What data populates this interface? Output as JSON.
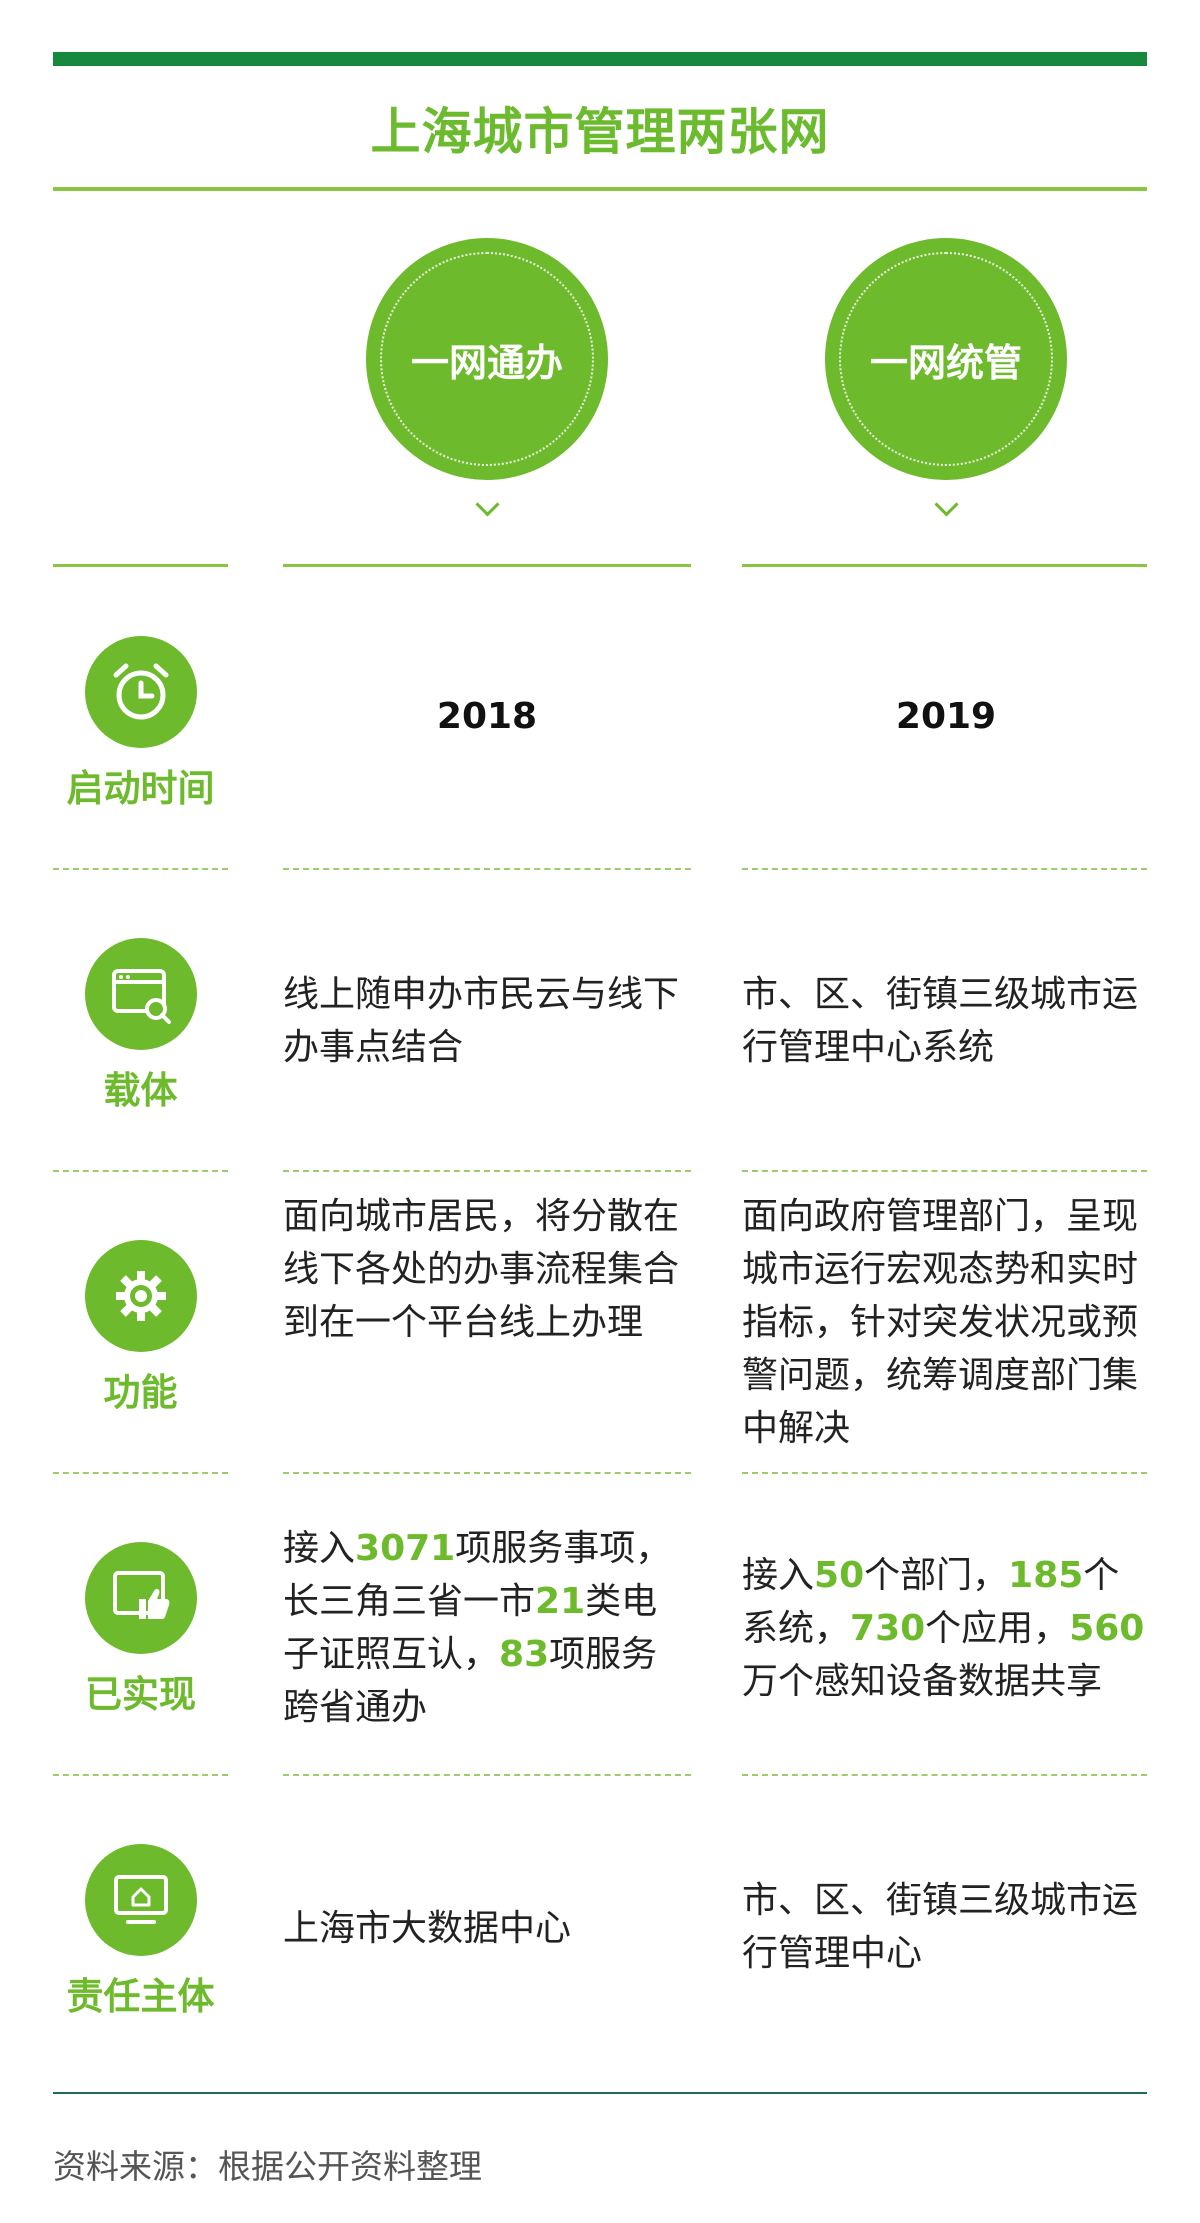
{
  "title": "上海城市管理两张网",
  "columns": [
    {
      "name": "一网通办",
      "year": "2018"
    },
    {
      "name": "一网统管",
      "year": "2019"
    }
  ],
  "rows": [
    {
      "label": "启动时间",
      "icon": "alarm-clock-icon"
    },
    {
      "label": "载体",
      "icon": "browser-window-icon",
      "col1": "线上随申办市民云与线下办事点结合",
      "col2": "市、区、街镇三级城市运行管理中心系统"
    },
    {
      "label": "功能",
      "icon": "gear-icon",
      "col1": "面向城市居民，将分散在线下各处的办事流程集合到在一个平台线上办理",
      "col2": "面向政府管理部门，呈现城市运行宏观态势和实时指标，针对突发状况或预警问题，统筹调度部门集中解决"
    },
    {
      "label": "已实现",
      "icon": "thumbs-up-icon",
      "col1_parts": [
        "接入",
        "3071",
        "项服务事项，长三角三省一市",
        "21",
        "类电子证照互认，",
        "83",
        "项服务跨省通办"
      ],
      "col2_parts": [
        "接入",
        "50",
        "个部门，",
        "185",
        "个系统，",
        "730",
        "个应用，",
        "560",
        "万个感知设备数据共享"
      ]
    },
    {
      "label": "责任主体",
      "icon": "monitor-home-icon",
      "col1": "上海市大数据中心",
      "col2": "市、区、街镇三级城市运行管理中心"
    }
  ],
  "source": "资料来源：根据公开资料整理",
  "colors": {
    "accent": "#6dba2c",
    "top_bar": "#17893e",
    "bottom_line": "#1e6b5a"
  }
}
